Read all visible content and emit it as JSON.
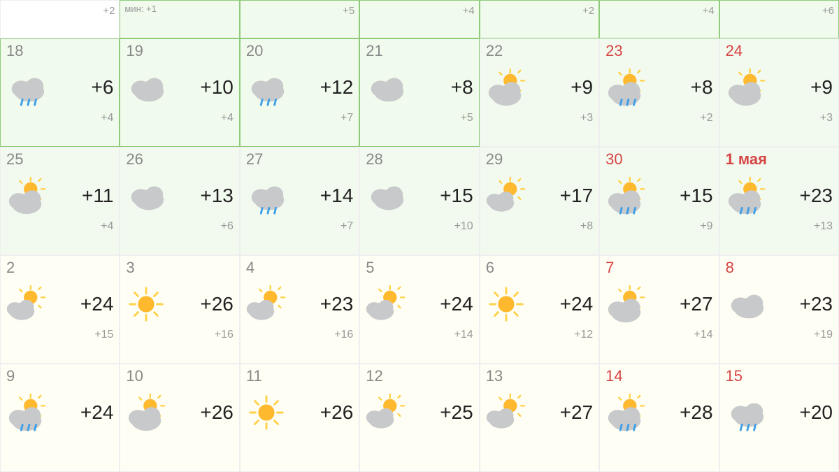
{
  "colors": {
    "cloud": "#c7c9cb",
    "cloud_shadow": "#b6b9bb",
    "sun_core": "#ffb92e",
    "sun_ray": "#ffd24a",
    "rain": "#3fa0e8",
    "day_normal": "#888888",
    "day_red": "#d64545",
    "temp": "#222222",
    "low": "#999999",
    "bg_green": "#f1fbed",
    "bg_yellow": "#fffef4",
    "border_green": "#8ecb7a"
  },
  "header": [
    {
      "low": "+2",
      "bg": "plain"
    },
    {
      "min_label": "мин:",
      "min_val": "+1",
      "bg": "green-border"
    },
    {
      "low": "+5",
      "bg": "green-border"
    },
    {
      "low": "+4",
      "bg": "green-border"
    },
    {
      "low": "+2",
      "bg": "green-border"
    },
    {
      "low": "+4",
      "bg": "green-border"
    },
    {
      "low": "+6",
      "bg": "green-border"
    }
  ],
  "rows": [
    [
      {
        "day": "18",
        "icon": "cloud-rain",
        "temp": "+6",
        "low": "+4",
        "bg": "green-border"
      },
      {
        "day": "19",
        "icon": "cloud",
        "temp": "+10",
        "low": "+4",
        "bg": "green-border"
      },
      {
        "day": "20",
        "icon": "cloud-rain",
        "temp": "+12",
        "low": "+7",
        "bg": "green-border"
      },
      {
        "day": "21",
        "icon": "cloud",
        "temp": "+8",
        "low": "+5",
        "bg": "green-border"
      },
      {
        "day": "22",
        "icon": "sun-cloud",
        "temp": "+9",
        "low": "+3",
        "bg": "green"
      },
      {
        "day": "23",
        "day_style": "red",
        "icon": "sun-cloud-rain",
        "temp": "+8",
        "low": "+2",
        "bg": "green"
      },
      {
        "day": "24",
        "day_style": "red",
        "icon": "sun-cloud",
        "temp": "+9",
        "low": "+3",
        "bg": "green"
      }
    ],
    [
      {
        "day": "25",
        "icon": "sun-cloud",
        "temp": "+11",
        "low": "+4",
        "bg": "green"
      },
      {
        "day": "26",
        "icon": "cloud",
        "temp": "+13",
        "low": "+6",
        "bg": "green"
      },
      {
        "day": "27",
        "icon": "cloud-rain",
        "temp": "+14",
        "low": "+7",
        "bg": "green"
      },
      {
        "day": "28",
        "icon": "cloud",
        "temp": "+15",
        "low": "+10",
        "bg": "green"
      },
      {
        "day": "29",
        "icon": "sun-cloud-sm",
        "temp": "+17",
        "low": "+8",
        "bg": "green"
      },
      {
        "day": "30",
        "day_style": "red",
        "icon": "sun-cloud-rain",
        "temp": "+15",
        "low": "+9",
        "bg": "green"
      },
      {
        "day": "1 мая",
        "day_style": "red bold",
        "icon": "sun-cloud-rain",
        "temp": "+23",
        "low": "+13",
        "bg": "green"
      }
    ],
    [
      {
        "day": "2",
        "icon": "sun-cloud-sm",
        "temp": "+24",
        "low": "+15",
        "bg": "yellow"
      },
      {
        "day": "3",
        "icon": "sun",
        "temp": "+26",
        "low": "+16",
        "bg": "yellow"
      },
      {
        "day": "4",
        "icon": "sun-cloud-sm",
        "temp": "+23",
        "low": "+16",
        "bg": "yellow"
      },
      {
        "day": "5",
        "icon": "sun-cloud-sm",
        "temp": "+24",
        "low": "+14",
        "bg": "yellow"
      },
      {
        "day": "6",
        "icon": "sun",
        "temp": "+24",
        "low": "+12",
        "bg": "yellow"
      },
      {
        "day": "7",
        "day_style": "red",
        "icon": "sun-cloud",
        "temp": "+27",
        "low": "+14",
        "bg": "yellow"
      },
      {
        "day": "8",
        "day_style": "red",
        "icon": "cloud",
        "temp": "+23",
        "low": "+19",
        "bg": "yellow"
      }
    ],
    [
      {
        "day": "9",
        "icon": "sun-cloud-rain",
        "temp": "+24",
        "low": "",
        "bg": "yellow"
      },
      {
        "day": "10",
        "icon": "sun-cloud",
        "temp": "+26",
        "low": "",
        "bg": "yellow"
      },
      {
        "day": "11",
        "icon": "sun",
        "temp": "+26",
        "low": "",
        "bg": "yellow"
      },
      {
        "day": "12",
        "icon": "sun-cloud-sm",
        "temp": "+25",
        "low": "",
        "bg": "yellow"
      },
      {
        "day": "13",
        "icon": "sun-cloud-sm",
        "temp": "+27",
        "low": "",
        "bg": "yellow"
      },
      {
        "day": "14",
        "day_style": "red",
        "icon": "sun-cloud-rain",
        "temp": "+28",
        "low": "",
        "bg": "yellow"
      },
      {
        "day": "15",
        "day_style": "red",
        "icon": "cloud-rain",
        "temp": "+20",
        "low": "",
        "bg": "yellow"
      }
    ]
  ]
}
